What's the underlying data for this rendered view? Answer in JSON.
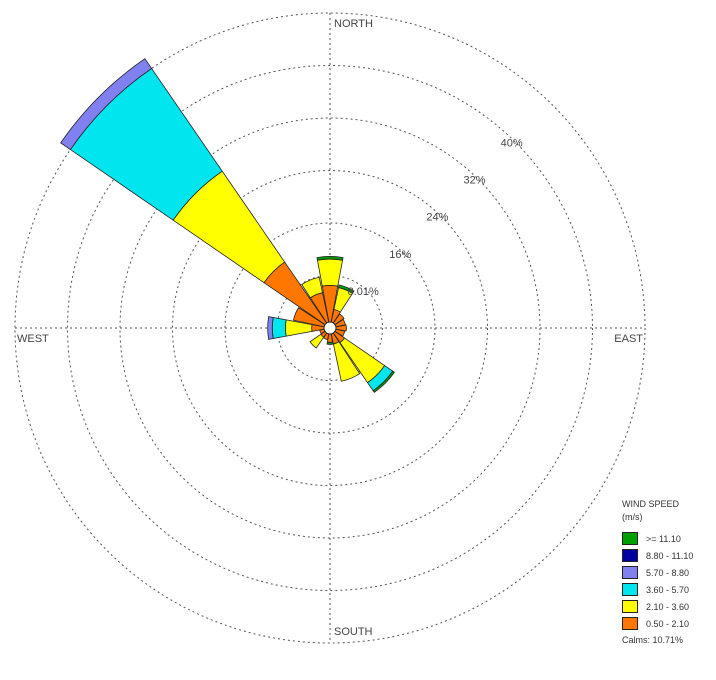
{
  "chart_data": {
    "type": "windrose",
    "directions": [
      "N",
      "NNE",
      "NE",
      "ENE",
      "E",
      "ESE",
      "SE",
      "SSE",
      "S",
      "SSW",
      "SW",
      "WSW",
      "W",
      "WNW",
      "NW",
      "NNW"
    ],
    "cardinal_labels": {
      "north": "NORTH",
      "east": "EAST",
      "south": "SOUTH",
      "west": "WEST"
    },
    "radial_ticks": [
      8.01,
      16,
      24,
      32,
      40
    ],
    "radial_tick_labels": [
      "8.01%",
      "16%",
      "24%",
      "32%",
      "40%"
    ],
    "rmax": 48,
    "grid": true,
    "legend_title": [
      "WIND SPEED",
      "(m/s)"
    ],
    "legend_position": "bottom-right",
    "series": [
      {
        "name": "0.50 - 2.10",
        "color": "#ff7700",
        "values": [
          6.5,
          2.9,
          2.6,
          2.4,
          2.5,
          2.3,
          2.7,
          2.5,
          2.2,
          1.8,
          1.7,
          1.6,
          2.8,
          5.7,
          12.2,
          5.5
        ]
      },
      {
        "name": "2.10 - 3.60",
        "color": "#ffff00",
        "values": [
          4.0,
          3.4,
          0,
          0,
          0,
          0,
          7.4,
          5.8,
          0,
          0,
          2.0,
          0,
          4.0,
          0,
          16.8,
          2.4
        ]
      },
      {
        "name": "3.60 - 5.70",
        "color": "#00e5ee",
        "values": [
          0,
          0,
          0,
          0,
          0,
          0,
          1.5,
          0,
          0,
          0,
          0,
          0,
          2.0,
          0,
          19.0,
          0
        ]
      },
      {
        "name": "5.70 - 8.80",
        "color": "#8080f0",
        "values": [
          0,
          0,
          0,
          0,
          0,
          0,
          0,
          0,
          0,
          0,
          0,
          0,
          0.7,
          0,
          1.8,
          0
        ]
      },
      {
        "name": "8.80 - 11.10",
        "color": "#0000a0",
        "values": [
          0,
          0,
          0,
          0,
          0,
          0,
          0,
          0,
          0,
          0,
          0,
          0,
          0,
          0,
          0,
          0
        ]
      },
      {
        "name": ">= 11.10",
        "color": "#00a000",
        "values": [
          0.4,
          0.4,
          0,
          0,
          0,
          0,
          0.3,
          0,
          0.3,
          0,
          0,
          0,
          0,
          0,
          0,
          0
        ]
      }
    ],
    "calms": "Calms: 10.71%"
  }
}
